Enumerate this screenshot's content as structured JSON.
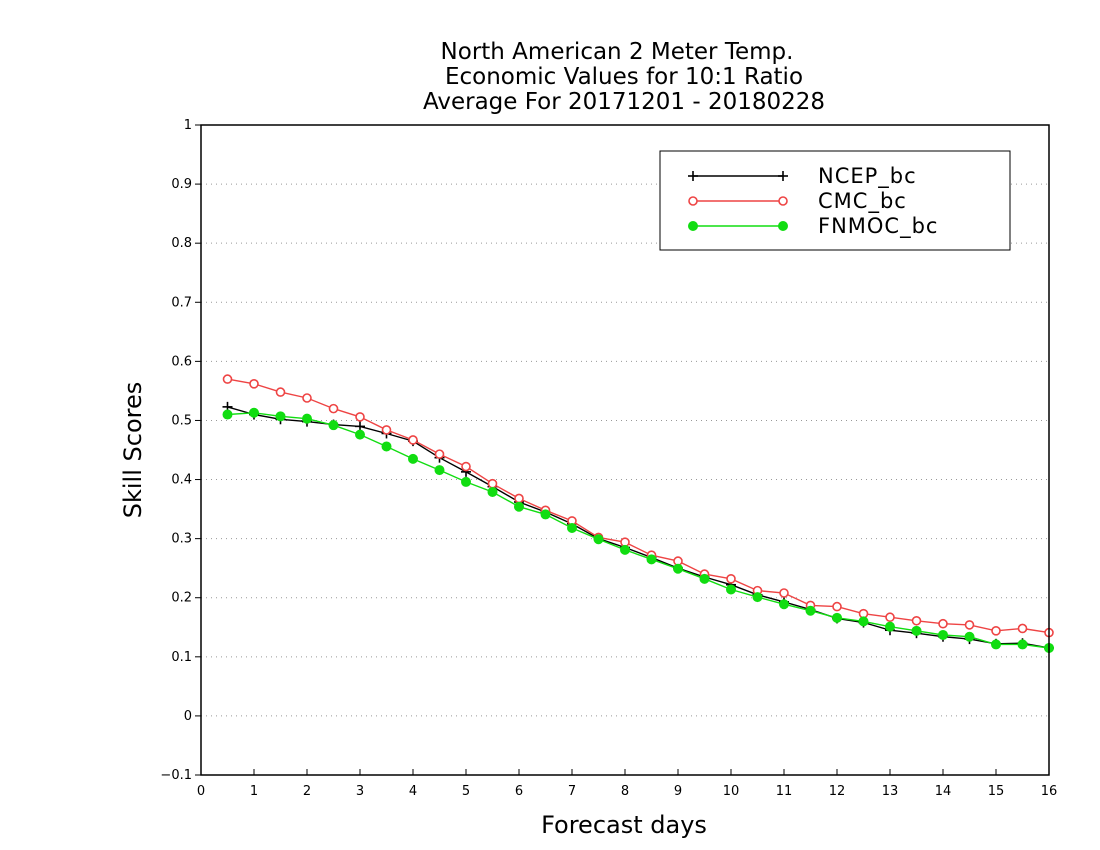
{
  "chart_data": {
    "type": "line",
    "title_lines": [
      "North American 2 Meter Temp.",
      "Economic Values for 10:1 Ratio",
      "Average For 20171201 - 20180228"
    ],
    "xlabel": "Forecast days",
    "ylabel": "Skill Scores",
    "xlim": [
      0,
      16
    ],
    "ylim": [
      -0.1,
      1
    ],
    "x_ticks": [
      0,
      1,
      2,
      3,
      4,
      5,
      6,
      7,
      8,
      9,
      10,
      11,
      12,
      13,
      14,
      15,
      16
    ],
    "y_ticks": [
      -0.1,
      0,
      0.1,
      0.2,
      0.3,
      0.4,
      0.5,
      0.6,
      0.7,
      0.8,
      0.9,
      1
    ],
    "y_tick_labels": [
      "−0.1",
      "0",
      "0.1",
      "0.2",
      "0.3",
      "0.4",
      "0.5",
      "0.6",
      "0.7",
      "0.8",
      "0.9",
      "1"
    ],
    "grid": "dotted-horizontal",
    "legend_position": "top-right",
    "x": [
      0.5,
      1,
      1.5,
      2,
      2.5,
      3,
      3.5,
      4,
      4.5,
      5,
      5.5,
      6,
      6.5,
      7,
      7.5,
      8,
      8.5,
      9,
      9.5,
      10,
      10.5,
      11,
      11.5,
      12,
      12.5,
      13,
      13.5,
      14,
      14.5,
      15,
      15.5,
      16
    ],
    "series": [
      {
        "name": "NCEP_bc",
        "color": "#000000",
        "marker": "plus",
        "values": [
          0.523,
          0.51,
          0.502,
          0.498,
          0.493,
          0.49,
          0.478,
          0.465,
          0.437,
          0.413,
          0.388,
          0.362,
          0.345,
          0.325,
          0.3,
          0.285,
          0.268,
          0.25,
          0.235,
          0.222,
          0.205,
          0.193,
          0.18,
          0.165,
          0.158,
          0.145,
          0.14,
          0.134,
          0.13,
          0.122,
          0.123,
          0.115
        ]
      },
      {
        "name": "CMC_bc",
        "color": "#ee4444",
        "marker": "open-circle",
        "values": [
          0.57,
          0.562,
          0.548,
          0.538,
          0.52,
          0.506,
          0.484,
          0.467,
          0.443,
          0.422,
          0.393,
          0.368,
          0.348,
          0.33,
          0.302,
          0.294,
          0.272,
          0.262,
          0.24,
          0.232,
          0.212,
          0.208,
          0.187,
          0.185,
          0.173,
          0.167,
          0.161,
          0.156,
          0.154,
          0.144,
          0.148,
          0.141
        ]
      },
      {
        "name": "FNMOC_bc",
        "color": "#11dd11",
        "marker": "filled-circle",
        "values": [
          0.51,
          0.513,
          0.507,
          0.503,
          0.492,
          0.476,
          0.456,
          0.435,
          0.416,
          0.396,
          0.379,
          0.354,
          0.341,
          0.318,
          0.299,
          0.281,
          0.265,
          0.249,
          0.232,
          0.214,
          0.201,
          0.189,
          0.178,
          0.166,
          0.16,
          0.151,
          0.144,
          0.137,
          0.134,
          0.121,
          0.121,
          0.115
        ]
      }
    ]
  }
}
